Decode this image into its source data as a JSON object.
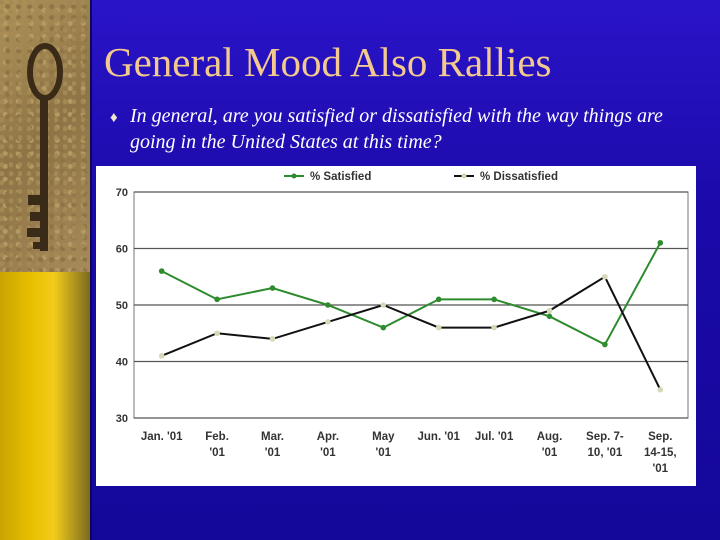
{
  "slide": {
    "title": "General Mood Also Rallies",
    "bullet": "In general, are you satisfied or dissatisfied with the way things are going in the United States at this time?"
  },
  "chart_data": {
    "type": "line",
    "categories": [
      [
        "Jan. '01"
      ],
      [
        "Feb.",
        "'01"
      ],
      [
        "Mar.",
        "'01"
      ],
      [
        "Apr.",
        "'01"
      ],
      [
        "May",
        "'01"
      ],
      [
        "Jun. '01"
      ],
      [
        "Jul. '01"
      ],
      [
        "Aug.",
        "'01"
      ],
      [
        "Sep. 7-",
        "10, '01"
      ],
      [
        "Sep.",
        "14-15,",
        "'01"
      ]
    ],
    "series": [
      {
        "name": "% Satisfied",
        "color": "#2e8b2e",
        "values": [
          56,
          51,
          53,
          50,
          46,
          51,
          51,
          48,
          43,
          61
        ]
      },
      {
        "name": "% Dissatisfied",
        "color": "#111111",
        "marker": "#d8d8b8",
        "values": [
          41,
          45,
          44,
          47,
          50,
          46,
          46,
          49,
          55,
          35
        ]
      }
    ],
    "ylim": [
      30,
      70
    ],
    "yticks": [
      30,
      40,
      50,
      60,
      70
    ],
    "grid": true,
    "legend": "top"
  }
}
